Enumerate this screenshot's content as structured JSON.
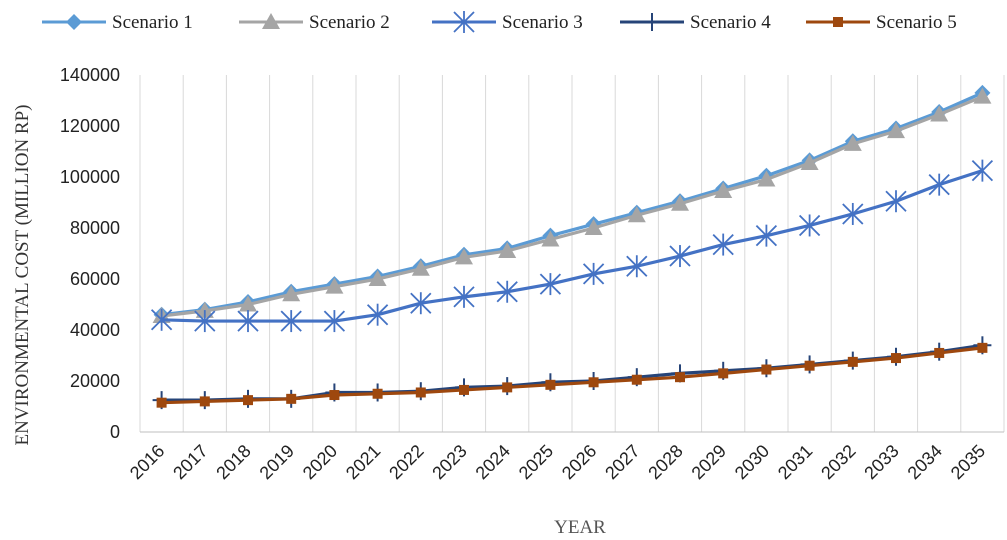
{
  "chart_data": {
    "type": "line",
    "title": "",
    "xlabel": "YEAR",
    "ylabel": "ENVIRONMENTAL COST (MILLION RP)",
    "x": [
      "2016",
      "2017",
      "2018",
      "2019",
      "2020",
      "2021",
      "2022",
      "2023",
      "2024",
      "2025",
      "2026",
      "2027",
      "2028",
      "2029",
      "2030",
      "2031",
      "2032",
      "2033",
      "2034",
      "2035"
    ],
    "ylim": [
      0,
      140000
    ],
    "yticks": [
      "0",
      "20000",
      "40000",
      "60000",
      "80000",
      "100000",
      "120000",
      "140000"
    ],
    "grid": "vertical",
    "legend": "top",
    "series": [
      {
        "name": "Scenario 1",
        "color": "#5b9bd5",
        "marker": "diamond",
        "values": [
          46000,
          48000,
          51000,
          55000,
          58000,
          61000,
          65000,
          69500,
          72000,
          77000,
          81500,
          86000,
          90500,
          95500,
          100500,
          106500,
          114000,
          119000,
          125500,
          133000
        ]
      },
      {
        "name": "Scenario 2",
        "color": "#a5a5a5",
        "marker": "triangle",
        "values": [
          45500,
          47500,
          50000,
          54000,
          57000,
          60000,
          64000,
          68500,
          71000,
          75500,
          80000,
          85000,
          89500,
          94500,
          99000,
          105500,
          113000,
          118000,
          124500,
          131500
        ]
      },
      {
        "name": "Scenario 3",
        "color": "#4472c4",
        "marker": "asterisk",
        "values": [
          44000,
          43500,
          43500,
          43500,
          43500,
          46000,
          50500,
          53000,
          55000,
          58000,
          62000,
          65000,
          69000,
          73500,
          77000,
          81000,
          85500,
          90500,
          97000,
          102500
        ]
      },
      {
        "name": "Scenario 4",
        "color": "#264478",
        "marker": "plus",
        "values": [
          12500,
          12500,
          13000,
          13000,
          15500,
          15500,
          16000,
          17500,
          18000,
          19500,
          20000,
          21500,
          23000,
          24000,
          25000,
          26500,
          28000,
          29500,
          31500,
          34000
        ]
      },
      {
        "name": "Scenario 5",
        "color": "#9e480e",
        "marker": "square",
        "values": [
          11500,
          12000,
          12500,
          13000,
          14500,
          15000,
          15500,
          16500,
          17500,
          18500,
          19500,
          20500,
          21500,
          23000,
          24500,
          26000,
          27500,
          29000,
          31000,
          33000
        ]
      }
    ]
  }
}
